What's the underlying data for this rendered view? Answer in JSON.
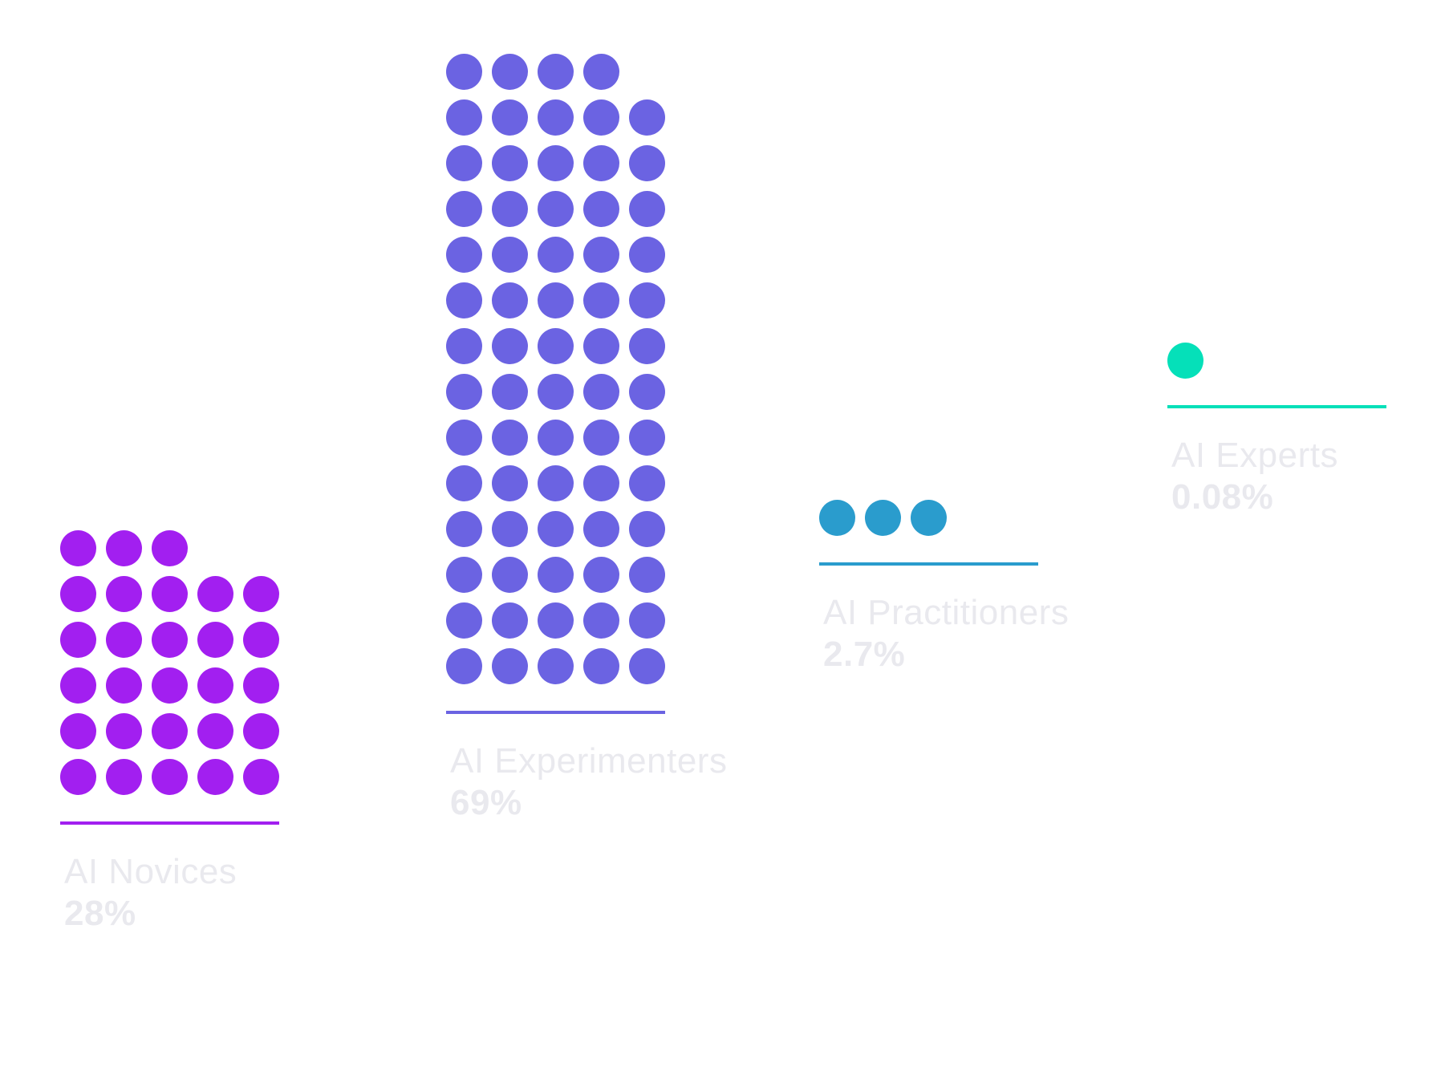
{
  "chart_data": {
    "type": "dot_pictogram",
    "title": "",
    "xlabel": "",
    "ylabel": "",
    "grid": false,
    "legend": "none",
    "categories": [
      "AI Novices",
      "AI Experimenters",
      "AI Practitioners",
      "AI Experts"
    ],
    "value_labels": [
      "28%",
      "69%",
      "2.7%",
      "0.08%"
    ],
    "values": [
      28,
      69,
      2.7,
      0.08
    ],
    "dot_counts": [
      28,
      69,
      3,
      1
    ],
    "dots_per_row": 5,
    "colors": [
      "#a21ff0",
      "#6b63e2",
      "#2a9ccd",
      "#05e0b9"
    ],
    "label_color": "#e9e9ee"
  }
}
